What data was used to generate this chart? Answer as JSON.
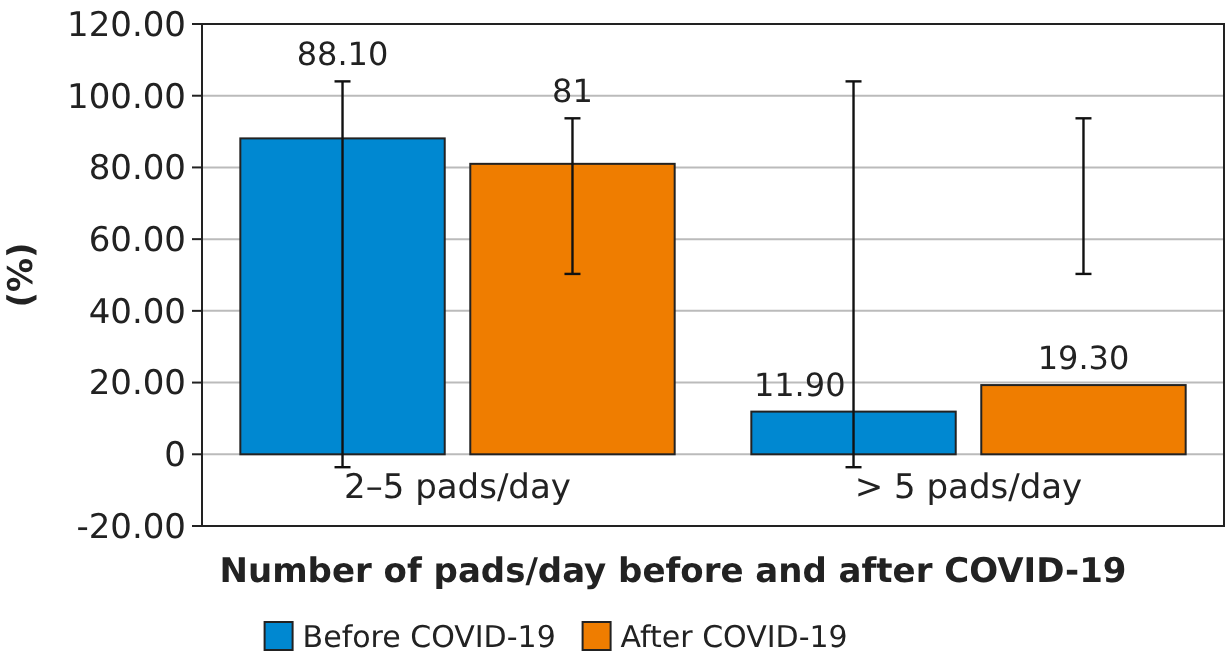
{
  "chart_data": {
    "type": "bar",
    "xlabel": "Number of pads/day before and after COVID-19",
    "ylabel": "(%)",
    "categories": [
      "2–5 pads/day",
      "> 5 pads/day"
    ],
    "series": [
      {
        "name": "Before COVID-19",
        "color": "#0088d1",
        "values": [
          88.1,
          11.9
        ],
        "value_labels": [
          "88.10",
          "11.90"
        ],
        "errors": [
          [
            -3.6,
            104
          ],
          [
            -3.6,
            104
          ]
        ]
      },
      {
        "name": "After COVID-19",
        "color": "#ef7d00",
        "values": [
          81,
          19.3
        ],
        "value_labels": [
          "81",
          "19.30"
        ],
        "errors": [
          [
            50.3,
            93.7
          ],
          [
            50.3,
            93.7
          ]
        ]
      }
    ],
    "ylim": [
      -20,
      120
    ],
    "yticks": [
      {
        "value": -20,
        "label": "-20.00"
      },
      {
        "value": 0,
        "label": "0"
      },
      {
        "value": 20,
        "label": "20.00"
      },
      {
        "value": 40,
        "label": "40.00"
      },
      {
        "value": 60,
        "label": "60.00"
      },
      {
        "value": 80,
        "label": "80.00"
      },
      {
        "value": 100,
        "label": "100.00"
      },
      {
        "value": 120,
        "label": "120.00"
      }
    ],
    "grid": "y",
    "legend": "bottom"
  }
}
